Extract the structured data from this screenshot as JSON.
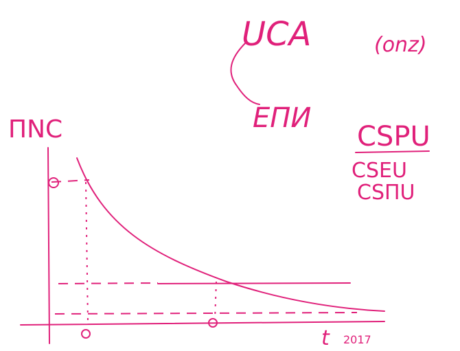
{
  "labels": {
    "top_word": "UCA",
    "top_note": "(onz)",
    "branch_word": "ЕПИ",
    "y_axis": "ПNC",
    "list_title": "CSPU",
    "list_items": [
      "CSEU",
      "CSПU"
    ],
    "x_axis": "t",
    "x_year": "2017"
  }
}
